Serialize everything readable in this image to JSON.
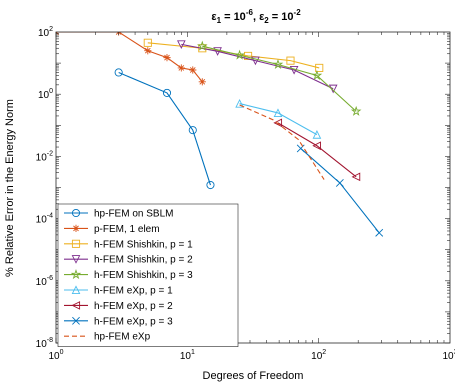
{
  "chart_data": {
    "type": "line",
    "title_parts": {
      "eps1_symbol": "ε",
      "eps1_sub": "1",
      "eps1_eq": " = 10",
      "eps1_exp": "-6",
      "sep": ", ",
      "eps2_symbol": "ε",
      "eps2_sub": "2",
      "eps2_eq": " = 10",
      "eps2_exp": "-2"
    },
    "xlabel": "Degrees of Freedom",
    "ylabel": "% Relative Error in the Energy Norm",
    "xscale": "log",
    "yscale": "log",
    "xlim": [
      1,
      1000
    ],
    "ylim": [
      1e-08,
      100
    ],
    "x_ticks": [
      {
        "base": "10",
        "exp": "0",
        "value": 1
      },
      {
        "base": "10",
        "exp": "1",
        "value": 10
      },
      {
        "base": "10",
        "exp": "2",
        "value": 100
      },
      {
        "base": "10",
        "exp": "3",
        "value": 1000
      }
    ],
    "y_ticks": [
      {
        "base": "10",
        "exp": "-8",
        "value": 1e-08
      },
      {
        "base": "10",
        "exp": "-6",
        "value": 1e-06
      },
      {
        "base": "10",
        "exp": "-4",
        "value": 0.0001
      },
      {
        "base": "10",
        "exp": "-2",
        "value": 0.01
      },
      {
        "base": "10",
        "exp": "0",
        "value": 1
      },
      {
        "base": "10",
        "exp": "2",
        "value": 100
      }
    ],
    "grid": false,
    "legend_position": "bottom-left",
    "series": [
      {
        "name": "hp-FEM on SBLM",
        "color": "#0072BD",
        "marker": "circle",
        "dash": "solid",
        "x": [
          3,
          7,
          11,
          15
        ],
        "y": [
          5,
          1.1,
          0.07,
          0.0012
        ]
      },
      {
        "name": "p-FEM, 1 elem",
        "color": "#D95319",
        "marker": "asterisk",
        "dash": "solid",
        "x": [
          1,
          3,
          5,
          7,
          9,
          11,
          13
        ],
        "y": [
          100,
          100,
          25,
          15,
          7,
          6,
          2.5
        ]
      },
      {
        "name": "h-FEM Shishkin, p = 1",
        "color": "#EDB120",
        "marker": "square",
        "dash": "solid",
        "x": [
          5,
          13,
          29,
          61,
          101
        ],
        "y": [
          45,
          30,
          17,
          12,
          7
        ]
      },
      {
        "name": "h-FEM Shishkin, p = 2",
        "color": "#7E2F8E",
        "marker": "triangle-down",
        "dash": "solid",
        "x": [
          9,
          17,
          33,
          65,
          129
        ],
        "y": [
          40,
          24,
          12,
          6,
          1.5
        ]
      },
      {
        "name": "h-FEM Shishkin, p = 3",
        "color": "#77AC30",
        "marker": "pentagram",
        "dash": "solid",
        "x": [
          13,
          25,
          49,
          97,
          193
        ],
        "y": [
          35,
          18,
          9,
          4,
          0.28
        ]
      },
      {
        "name": "h-FEM eXp, p = 1",
        "color": "#4DBEEE",
        "marker": "triangle-up",
        "dash": "solid",
        "x": [
          25,
          49,
          97
        ],
        "y": [
          0.5,
          0.25,
          0.05
        ]
      },
      {
        "name": "h-FEM eXp, p = 2",
        "color": "#A2142F",
        "marker": "triangle-left",
        "dash": "solid",
        "x": [
          49,
          97,
          193
        ],
        "y": [
          0.12,
          0.022,
          0.0022
        ]
      },
      {
        "name": "h-FEM eXp, p = 3",
        "color": "#0072BD",
        "marker": "x",
        "dash": "solid",
        "x": [
          73,
          145,
          289
        ],
        "y": [
          0.018,
          0.0014,
          3.5e-05
        ]
      },
      {
        "name": "hp-FEM eXp",
        "color": "#D95319",
        "marker": "none",
        "dash": "dashed",
        "x": [
          25,
          45,
          70,
          110
        ],
        "y": [
          0.45,
          0.15,
          0.035,
          0.0018
        ]
      }
    ]
  }
}
